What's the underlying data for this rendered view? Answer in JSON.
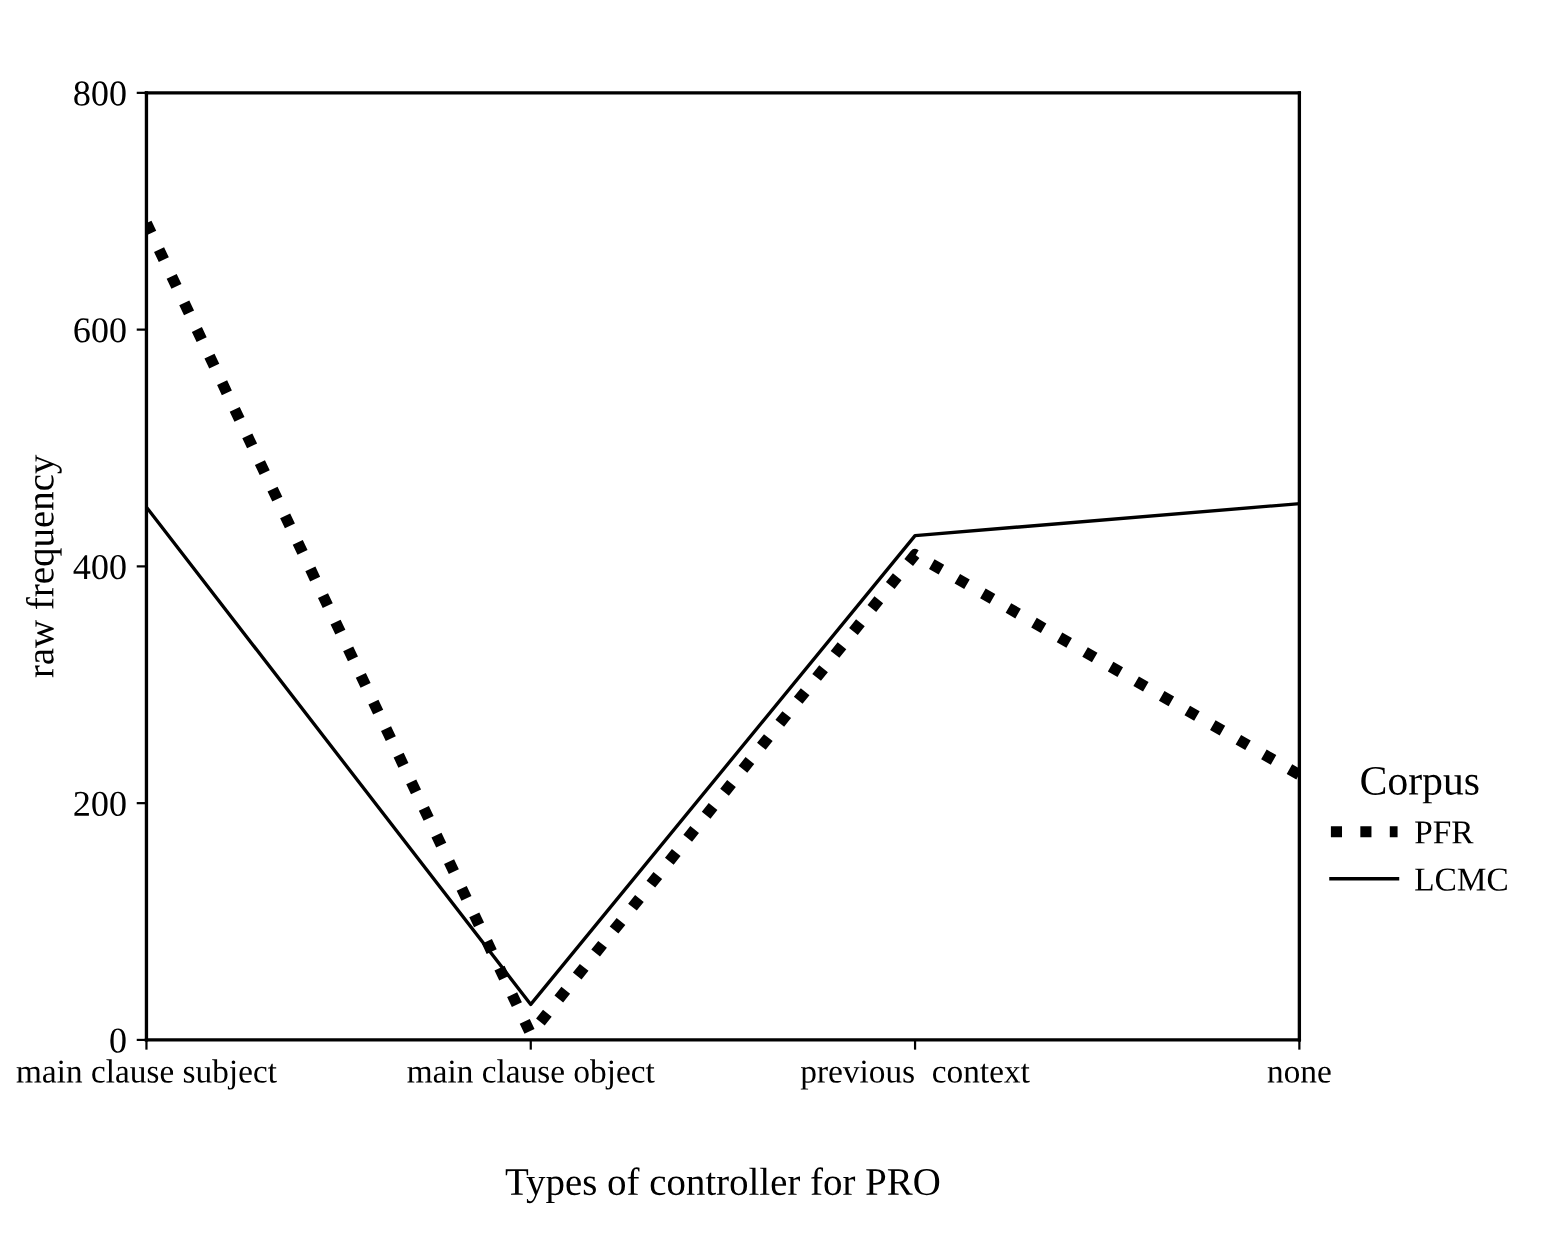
{
  "chart_data": {
    "type": "line",
    "xlabel": "Types of controller for PRO",
    "ylabel": "raw frequency",
    "legend_title": "Corpus",
    "categories": [
      "main clause subject",
      "main clause object",
      "previous  context",
      "none"
    ],
    "series": [
      {
        "name": "PFR",
        "color": "#000000",
        "line_style": "dotted",
        "values": [
          690,
          5,
          410,
          224
        ]
      },
      {
        "name": "LCMC",
        "color": "#000000",
        "line_style": "solid",
        "values": [
          450,
          30,
          426,
          453
        ]
      }
    ],
    "ylim": [
      0,
      800
    ],
    "yticks": [
      0,
      200,
      400,
      600,
      800
    ],
    "grid": false,
    "legend": "right",
    "marker": "none"
  }
}
